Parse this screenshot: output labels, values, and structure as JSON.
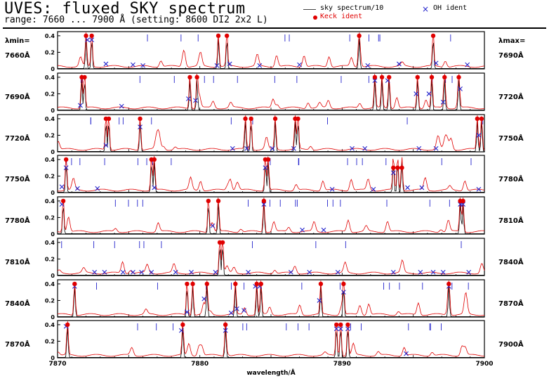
{
  "header": {
    "title": "UVES:  fluxed  SKY  spectrum",
    "subtitle": "range:  7660  ...  7900  Å  (setting:  8600  DI2  2x2  L)"
  },
  "legend": {
    "sky": "sky spectrum/10",
    "oh": "OH ident",
    "keck": "Keck ident"
  },
  "side_labels": {
    "lambda_min": "λmin=",
    "lambda_max": "λmax="
  },
  "colors": {
    "sky": "#000000",
    "model": "#e00000",
    "keck": "#e00000",
    "oh": "#2323cc",
    "ticks": "#2323cc"
  },
  "chart_data": {
    "type": "line",
    "xlabel": "wavelength/Å",
    "ylim": [
      0,
      0.45
    ],
    "yticks": [
      "0",
      "0.2",
      "0.4"
    ],
    "bottom_xticks": [
      "7870",
      "7880",
      "7890",
      "7900"
    ],
    "panels": [
      {
        "xmin": 7660,
        "xmax": 7690,
        "label_min": "7660Å",
        "label_max": "7690Å",
        "keck": [
          [
            7662.0,
            0.4
          ],
          [
            7662.4,
            0.4
          ],
          [
            7671.3,
            0.4
          ],
          [
            7671.9,
            0.4
          ],
          [
            7681.2,
            0.4
          ],
          [
            7686.4,
            0.4
          ]
        ],
        "oh": [
          [
            7662.1,
            0.35
          ],
          [
            7662.4,
            0.35
          ],
          [
            7663.4,
            0.06
          ],
          [
            7665.3,
            0.05
          ],
          [
            7666.0,
            0.04
          ],
          [
            7671.2,
            0.04
          ],
          [
            7672.1,
            0.06
          ],
          [
            7674.2,
            0.04
          ],
          [
            7677.0,
            0.05
          ],
          [
            7681.8,
            0.04
          ],
          [
            7684.0,
            0.06
          ],
          [
            7686.6,
            0.07
          ],
          [
            7688.8,
            0.05
          ]
        ]
      },
      {
        "xmin": 7690,
        "xmax": 7720,
        "label_min": "7690Å",
        "label_max": "7720Å",
        "keck": [
          [
            7691.7,
            0.4
          ],
          [
            7691.9,
            0.4
          ],
          [
            7699.3,
            0.4
          ],
          [
            7699.8,
            0.4
          ],
          [
            7712.3,
            0.4
          ],
          [
            7712.8,
            0.4
          ],
          [
            7713.3,
            0.4
          ],
          [
            7715.3,
            0.4
          ],
          [
            7716.3,
            0.4
          ],
          [
            7717.2,
            0.4
          ],
          [
            7718.2,
            0.4
          ]
        ],
        "oh": [
          [
            7691.6,
            0.06
          ],
          [
            7694.5,
            0.05
          ],
          [
            7699.2,
            0.14
          ],
          [
            7699.7,
            0.12
          ],
          [
            7712.3,
            0.36
          ],
          [
            7713.2,
            0.36
          ],
          [
            7715.2,
            0.2
          ],
          [
            7716.1,
            0.2
          ],
          [
            7717.1,
            0.1
          ],
          [
            7718.3,
            0.26
          ]
        ]
      },
      {
        "xmin": 7720,
        "xmax": 7750,
        "label_min": "7720Å",
        "label_max": "7750Å",
        "keck": [
          [
            7723.4,
            0.4
          ],
          [
            7723.6,
            0.4
          ],
          [
            7725.8,
            0.4
          ],
          [
            7733.2,
            0.4
          ],
          [
            7733.6,
            0.4
          ],
          [
            7735.3,
            0.4
          ],
          [
            7736.7,
            0.4
          ],
          [
            7736.9,
            0.4
          ],
          [
            7749.5,
            0.4
          ],
          [
            7749.8,
            0.4
          ]
        ],
        "oh": [
          [
            7723.4,
            0.08
          ],
          [
            7725.8,
            0.3
          ],
          [
            7732.3,
            0.04
          ],
          [
            7733.3,
            0.04
          ],
          [
            7735.1,
            0.04
          ],
          [
            7736.6,
            0.04
          ],
          [
            7740.7,
            0.04
          ],
          [
            7741.6,
            0.04
          ],
          [
            7745.4,
            0.04
          ],
          [
            7746.6,
            0.04
          ],
          [
            7749.6,
            0.2
          ]
        ]
      },
      {
        "xmin": 7750,
        "xmax": 7780,
        "label_min": "7750Å",
        "label_max": "7780Å",
        "keck": [
          [
            7750.6,
            0.4
          ],
          [
            7756.6,
            0.4
          ],
          [
            7756.8,
            0.4
          ],
          [
            7764.6,
            0.4
          ],
          [
            7764.8,
            0.4
          ],
          [
            7773.6,
            0.3
          ],
          [
            7773.9,
            0.3
          ],
          [
            7774.2,
            0.3
          ]
        ],
        "oh": [
          [
            7750.3,
            0.07
          ],
          [
            7750.6,
            0.3
          ],
          [
            7751.4,
            0.05
          ],
          [
            7752.8,
            0.05
          ],
          [
            7756.8,
            0.06
          ],
          [
            7764.6,
            0.3
          ],
          [
            7769.3,
            0.04
          ],
          [
            7772.2,
            0.04
          ],
          [
            7773.6,
            0.24
          ],
          [
            7774.6,
            0.06
          ],
          [
            7775.6,
            0.06
          ],
          [
            7779.6,
            0.04
          ]
        ]
      },
      {
        "xmin": 7780,
        "xmax": 7810,
        "label_min": "7780Å",
        "label_max": "7810Å",
        "keck": [
          [
            7780.4,
            0.4
          ],
          [
            7790.6,
            0.4
          ],
          [
            7791.3,
            0.4
          ],
          [
            7794.5,
            0.4
          ],
          [
            7808.3,
            0.4
          ],
          [
            7808.5,
            0.4
          ]
        ],
        "oh": [
          [
            7780.3,
            0.36
          ],
          [
            7790.9,
            0.1
          ],
          [
            7794.5,
            0.36
          ],
          [
            7797.2,
            0.05
          ],
          [
            7798.7,
            0.05
          ],
          [
            7808.3,
            0.36
          ],
          [
            7808.5,
            0.36
          ]
        ]
      },
      {
        "xmin": 7810,
        "xmax": 7840,
        "label_min": "7810Å",
        "label_max": "7840Å",
        "keck": [
          [
            7821.4,
            0.4
          ],
          [
            7821.6,
            0.4
          ]
        ],
        "oh": [
          [
            7812.6,
            0.04
          ],
          [
            7813.3,
            0.04
          ],
          [
            7814.6,
            0.04
          ],
          [
            7815.3,
            0.04
          ],
          [
            7815.9,
            0.04
          ],
          [
            7816.6,
            0.04
          ],
          [
            7818.3,
            0.04
          ],
          [
            7819.4,
            0.04
          ],
          [
            7821.1,
            0.04
          ],
          [
            7823.4,
            0.04
          ],
          [
            7826.4,
            0.04
          ],
          [
            7827.7,
            0.04
          ],
          [
            7829.7,
            0.04
          ],
          [
            7833.6,
            0.04
          ],
          [
            7835.5,
            0.04
          ],
          [
            7836.4,
            0.04
          ],
          [
            7837.1,
            0.04
          ],
          [
            7838.9,
            0.04
          ]
        ]
      },
      {
        "xmin": 7840,
        "xmax": 7870,
        "label_min": "7840Å",
        "label_max": "7870Å",
        "keck": [
          [
            7841.2,
            0.4
          ],
          [
            7849.1,
            0.4
          ],
          [
            7849.5,
            0.4
          ],
          [
            7850.5,
            0.4
          ],
          [
            7852.5,
            0.4
          ],
          [
            7854.0,
            0.4
          ],
          [
            7854.3,
            0.4
          ],
          [
            7858.5,
            0.4
          ],
          [
            7860.1,
            0.4
          ],
          [
            7867.5,
            0.4
          ]
        ],
        "oh": [
          [
            7841.2,
            0.37
          ],
          [
            7849.1,
            0.06
          ],
          [
            7850.3,
            0.22
          ],
          [
            7852.2,
            0.05
          ],
          [
            7852.6,
            0.1
          ],
          [
            7853.1,
            0.08
          ],
          [
            7853.9,
            0.37
          ],
          [
            7854.2,
            0.37
          ],
          [
            7858.4,
            0.2
          ],
          [
            7860.1,
            0.3
          ],
          [
            7867.5,
            0.37
          ]
        ]
      },
      {
        "xmin": 7870,
        "xmax": 7900,
        "label_min": "7870Å",
        "label_max": "7900Å",
        "keck": [
          [
            7870.7,
            0.4
          ],
          [
            7878.8,
            0.4
          ],
          [
            7881.8,
            0.4
          ],
          [
            7889.6,
            0.4
          ],
          [
            7889.9,
            0.4
          ],
          [
            7890.4,
            0.4
          ]
        ],
        "oh": [
          [
            7870.6,
            0.38
          ],
          [
            7878.7,
            0.33
          ],
          [
            7881.8,
            0.33
          ],
          [
            7889.6,
            0.35
          ],
          [
            7889.9,
            0.35
          ],
          [
            7890.4,
            0.35
          ],
          [
            7894.5,
            0.05
          ]
        ]
      }
    ]
  }
}
